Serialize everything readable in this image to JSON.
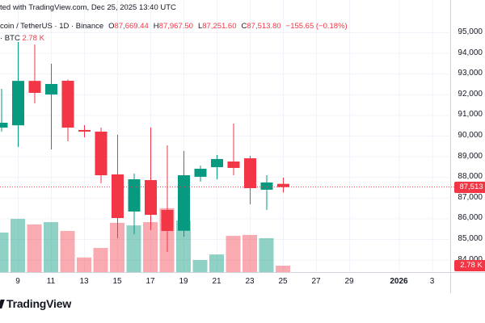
{
  "header": {
    "watermark": "ted with TradingView.com, Dec 25, 2025 13:40 UTC",
    "symbol_line": {
      "symbol": "coin / TetherUS · 1D · Binance",
      "ohlc": [
        {
          "k": "O",
          "v": "87,669.44"
        },
        {
          "k": "H",
          "v": "87,967.50"
        },
        {
          "k": "L",
          "v": "87,251.60"
        },
        {
          "k": "C",
          "v": "87,513.80"
        }
      ],
      "change": "−155.65 (−0.18%)"
    },
    "volume_line": {
      "label": "· BTC",
      "value": "2.78 K"
    }
  },
  "price_scale": {
    "current_price_label": "87,513",
    "volume_badge_label": "2.78 K"
  },
  "footer": {
    "logo_text": "TradingView"
  },
  "colors": {
    "up": "#089981",
    "down": "#F23645",
    "volume_up": "rgba(8,153,129,0.45)",
    "volume_down": "rgba(242,54,69,0.42)",
    "grid": "#F0F3FA",
    "axis_border": "#D1D4DC",
    "text": "#131722",
    "badge_bg": "#F23645",
    "badge_text": "#FFFFFF"
  },
  "chart_data": {
    "type": "candlestick",
    "title": "coin / TetherUS · 1D · Binance",
    "grid": true,
    "current_price": 87513.8,
    "ylim": [
      83400,
      96560
    ],
    "y_axis": {
      "ticks": [
        {
          "label": "95,000",
          "value": 95000
        },
        {
          "label": "94,000",
          "value": 94000
        },
        {
          "label": "93,000",
          "value": 93000
        },
        {
          "label": "92,000",
          "value": 92000
        },
        {
          "label": "91,000",
          "value": 91000
        },
        {
          "label": "90,000",
          "value": 90000
        },
        {
          "label": "89,000",
          "value": 89000
        },
        {
          "label": "88,000",
          "value": 88000
        },
        {
          "label": "87,000",
          "value": 87000
        },
        {
          "label": "86,000",
          "value": 86000
        },
        {
          "label": "85,000",
          "value": 85000
        },
        {
          "label": "84,000",
          "value": 84000
        }
      ]
    },
    "x_axis": {
      "ticks": [
        {
          "label": "9",
          "day": 9,
          "bold": false
        },
        {
          "label": "11",
          "day": 11,
          "bold": false
        },
        {
          "label": "13",
          "day": 13,
          "bold": false
        },
        {
          "label": "15",
          "day": 15,
          "bold": false
        },
        {
          "label": "17",
          "day": 17,
          "bold": false
        },
        {
          "label": "19",
          "day": 19,
          "bold": false
        },
        {
          "label": "21",
          "day": 21,
          "bold": false
        },
        {
          "label": "23",
          "day": 23,
          "bold": false
        },
        {
          "label": "25",
          "day": 25,
          "bold": false
        },
        {
          "label": "27",
          "day": 27,
          "bold": false
        },
        {
          "label": "29",
          "day": 29,
          "bold": false
        },
        {
          "label": "2026",
          "day": 32,
          "bold": true
        },
        {
          "label": "3",
          "day": 34,
          "bold": false
        }
      ]
    },
    "volume_unit": "K",
    "candles": [
      {
        "date": "Dec 8",
        "day": 8,
        "open": 90390,
        "high": 92265,
        "low": 90195,
        "close": 90625,
        "volume_k": 17.0
      },
      {
        "date": "Dec 9",
        "day": 9,
        "open": 90500,
        "high": 94530,
        "low": 89450,
        "close": 92650,
        "volume_k": 22.9
      },
      {
        "date": "Dec 10",
        "day": 10,
        "open": 92650,
        "high": 94410,
        "low": 91560,
        "close": 92070,
        "volume_k": 20.5
      },
      {
        "date": "Dec 11",
        "day": 11,
        "open": 91990,
        "high": 93475,
        "low": 89335,
        "close": 92500,
        "volume_k": 21.5
      },
      {
        "date": "Dec 12",
        "day": 12,
        "open": 92655,
        "high": 92715,
        "low": 89725,
        "close": 90390,
        "volume_k": 17.7
      },
      {
        "date": "Dec 13",
        "day": 13,
        "open": 90275,
        "high": 90510,
        "low": 89920,
        "close": 90195,
        "volume_k": 6.3
      },
      {
        "date": "Dec 14",
        "day": 14,
        "open": 90195,
        "high": 90390,
        "low": 87695,
        "close": 88085,
        "volume_k": 10.4
      },
      {
        "date": "Dec 15",
        "day": 15,
        "open": 88125,
        "high": 90040,
        "low": 85040,
        "close": 86015,
        "volume_k": 21.2
      },
      {
        "date": "Dec 16",
        "day": 16,
        "open": 86330,
        "high": 88165,
        "low": 85235,
        "close": 87890,
        "volume_k": 20.1
      },
      {
        "date": "Dec 17",
        "day": 17,
        "open": 87850,
        "high": 90390,
        "low": 85430,
        "close": 86170,
        "volume_k": 21.5
      },
      {
        "date": "Dec 18",
        "day": 18,
        "open": 86405,
        "high": 89530,
        "low": 84375,
        "close": 85390,
        "volume_k": 27.5
      },
      {
        "date": "Dec 19",
        "day": 19,
        "open": 85400,
        "high": 89260,
        "low": 85115,
        "close": 88085,
        "volume_k": 22.2
      },
      {
        "date": "Dec 20",
        "day": 20,
        "open": 88010,
        "high": 88555,
        "low": 87775,
        "close": 88400,
        "volume_k": 5.2
      },
      {
        "date": "Dec 21",
        "day": 21,
        "open": 88475,
        "high": 89065,
        "low": 87890,
        "close": 88870,
        "volume_k": 7.6
      },
      {
        "date": "Dec 22",
        "day": 22,
        "open": 88750,
        "high": 90585,
        "low": 88085,
        "close": 88440,
        "volume_k": 15.6
      },
      {
        "date": "Dec 23",
        "day": 23,
        "open": 88905,
        "high": 89025,
        "low": 86680,
        "close": 87460,
        "volume_k": 16.0
      },
      {
        "date": "Dec 24",
        "day": 24,
        "open": 87385,
        "high": 88085,
        "low": 86405,
        "close": 87735,
        "volume_k": 14.6
      },
      {
        "date": "Dec 25",
        "day": 25,
        "open": 87669.44,
        "high": 87967.5,
        "low": 87251.6,
        "close": 87513.8,
        "volume_k": 2.78
      }
    ]
  }
}
